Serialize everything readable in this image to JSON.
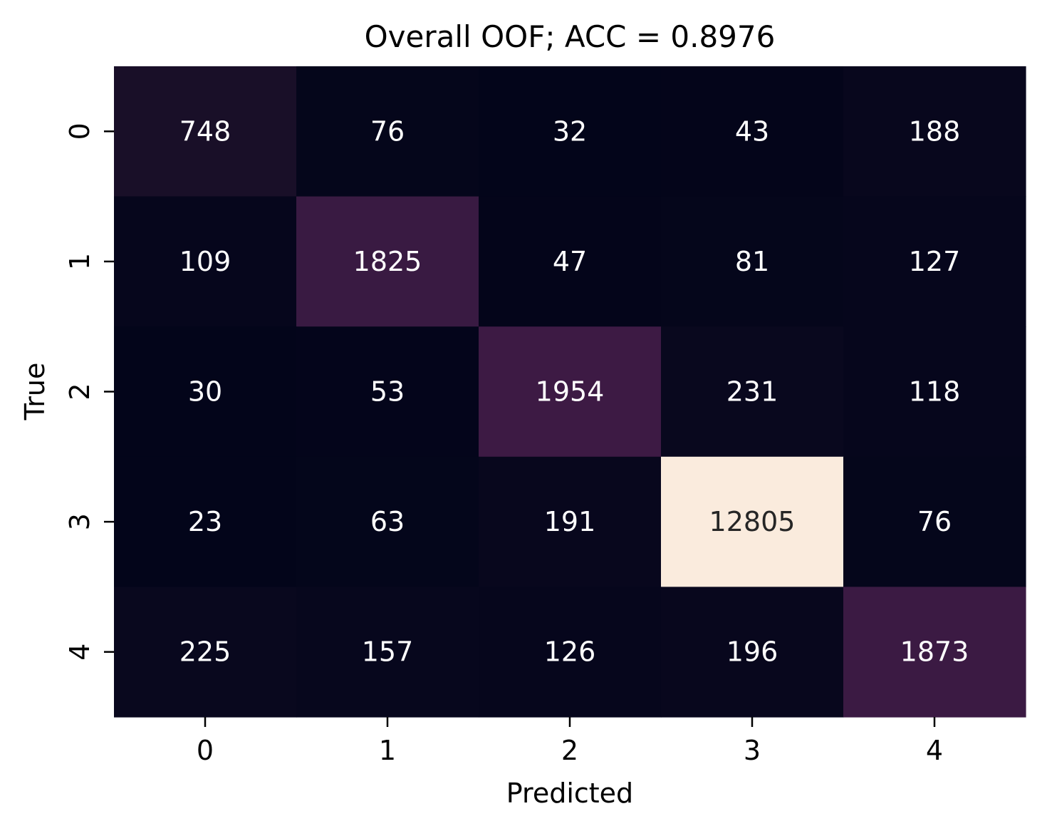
{
  "chart_data": {
    "type": "heatmap",
    "title": "Overall OOF; ACC = 0.8976",
    "xlabel": "Predicted",
    "ylabel": "True",
    "x_categories": [
      "0",
      "1",
      "2",
      "3",
      "4"
    ],
    "y_categories": [
      "0",
      "1",
      "2",
      "3",
      "4"
    ],
    "values": [
      [
        748,
        76,
        32,
        43,
        188
      ],
      [
        109,
        1825,
        47,
        81,
        127
      ],
      [
        30,
        53,
        1954,
        231,
        118
      ],
      [
        23,
        63,
        191,
        12805,
        76
      ],
      [
        225,
        157,
        126,
        196,
        1873
      ]
    ],
    "colormap": "rocket",
    "color_min": 23,
    "color_max": 12805,
    "colorbar": false,
    "grid": false
  }
}
